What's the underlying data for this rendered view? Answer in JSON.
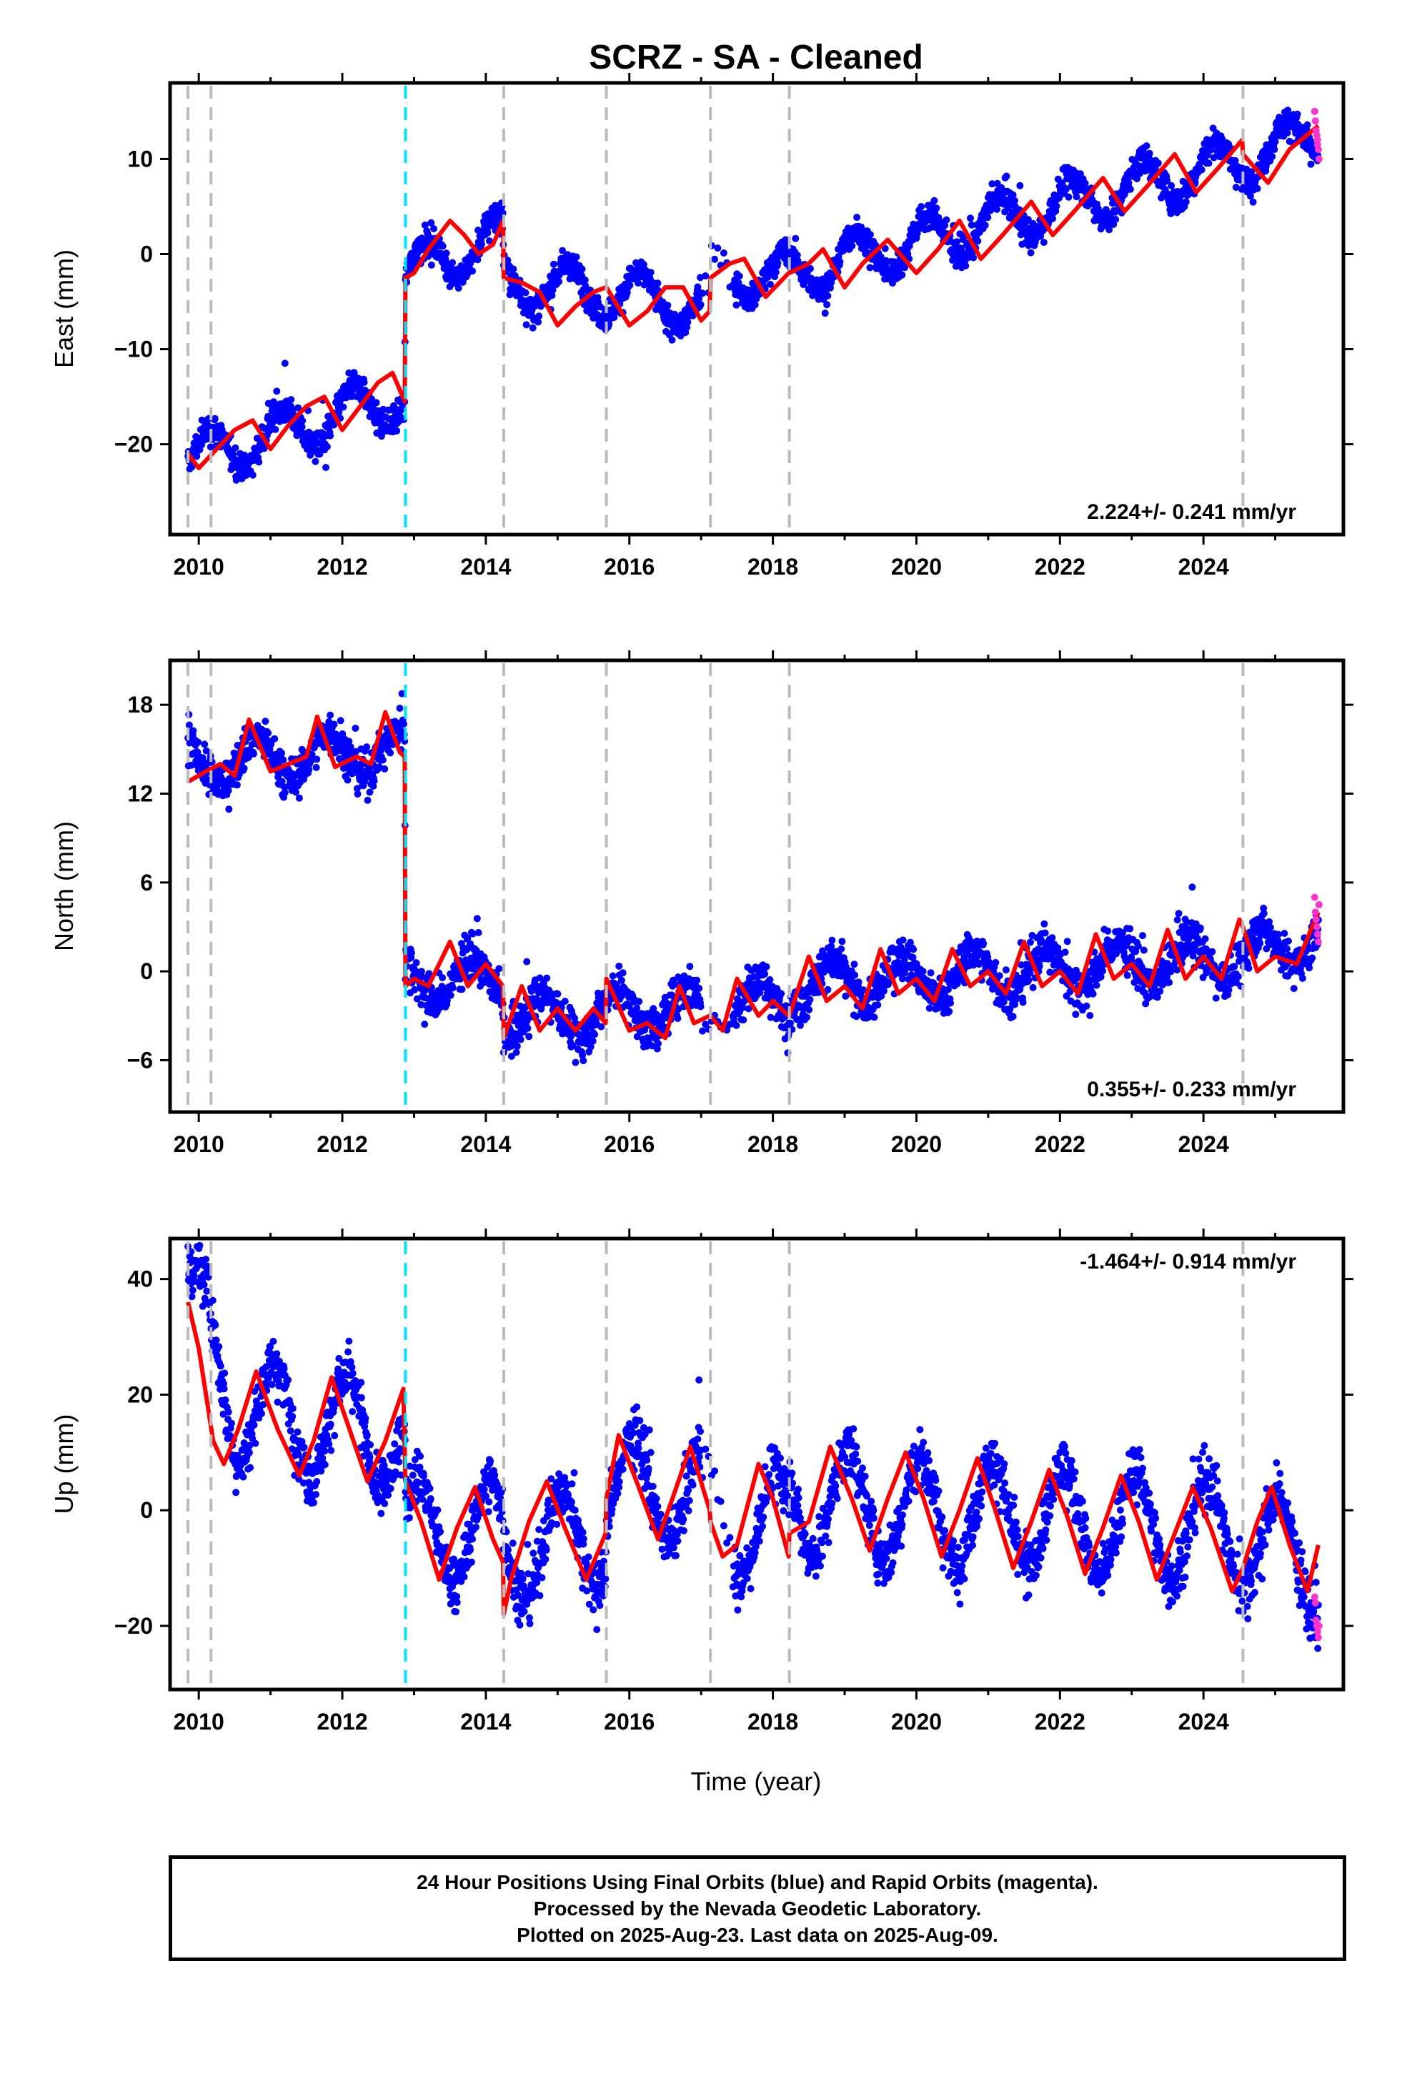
{
  "title": "SCRZ  - SA - Cleaned",
  "xlabel": "Time (year)",
  "caption": [
    "24 Hour Positions Using Final Orbits (blue) and Rapid Orbits (magenta).",
    "Processed by the Nevada Geodetic Laboratory.",
    "Plotted on 2025-Aug-23. Last data on 2025-Aug-09."
  ],
  "colors": {
    "final": "#0000ff",
    "rapid": "#ff33cc",
    "model": "#ff0000",
    "equipment_change": "#bbbbbb",
    "earthquake": "#00e5ff"
  },
  "chart_data": [
    {
      "type": "scatter",
      "ylabel": "East (mm)",
      "xlim": [
        2009.6,
        2025.95
      ],
      "ylim": [
        -29.5,
        18
      ],
      "xticks": [
        2010,
        2012,
        2014,
        2016,
        2018,
        2020,
        2022,
        2024
      ],
      "yticks": [
        -20,
        -10,
        0,
        10
      ],
      "rate": "2.224+/- 0.241 mm/yr",
      "rate_position": "bottom-right",
      "data_range": [
        2009.85,
        2025.6
      ],
      "gray_lines": [
        2009.85,
        2010.17,
        2014.25,
        2015.68,
        2017.13,
        2018.23,
        2024.55
      ],
      "cyan_lines": [
        2012.88
      ],
      "model": [
        [
          2009.85,
          -21
        ],
        [
          2010.0,
          -22.5
        ],
        [
          2010.25,
          -20.5
        ],
        [
          2010.5,
          -18.5
        ],
        [
          2010.75,
          -17.5
        ],
        [
          2011.0,
          -20.5
        ],
        [
          2011.25,
          -18
        ],
        [
          2011.5,
          -16
        ],
        [
          2011.75,
          -15
        ],
        [
          2012.0,
          -18.5
        ],
        [
          2012.25,
          -16
        ],
        [
          2012.5,
          -13.5
        ],
        [
          2012.7,
          -12.5
        ],
        [
          2012.87,
          -15.5
        ],
        [
          2012.88,
          -2.5
        ],
        [
          2013.0,
          -2
        ],
        [
          2013.2,
          0.5
        ],
        [
          2013.5,
          3.5
        ],
        [
          2013.7,
          2
        ],
        [
          2013.9,
          0
        ],
        [
          2014.1,
          1
        ],
        [
          2014.24,
          3.5
        ],
        [
          2014.25,
          -2.5
        ],
        [
          2014.5,
          -3
        ],
        [
          2014.75,
          -4
        ],
        [
          2015.0,
          -7.5
        ],
        [
          2015.25,
          -5.5
        ],
        [
          2015.5,
          -4
        ],
        [
          2015.67,
          -3.5
        ],
        [
          2015.68,
          -3.5
        ],
        [
          2016.0,
          -7.5
        ],
        [
          2016.25,
          -6
        ],
        [
          2016.5,
          -3.5
        ],
        [
          2016.75,
          -3.5
        ],
        [
          2017.0,
          -7
        ],
        [
          2017.12,
          -6
        ],
        [
          2017.13,
          -2.5
        ],
        [
          2017.4,
          -1
        ],
        [
          2017.6,
          -0.5
        ],
        [
          2017.9,
          -4.5
        ],
        [
          2018.22,
          -2
        ],
        [
          2018.23,
          -2
        ],
        [
          2018.5,
          -1
        ],
        [
          2018.7,
          0.5
        ],
        [
          2019.0,
          -3.5
        ],
        [
          2019.25,
          -1
        ],
        [
          2019.6,
          1.5
        ],
        [
          2020.0,
          -2
        ],
        [
          2020.3,
          0.5
        ],
        [
          2020.6,
          3.5
        ],
        [
          2020.9,
          -0.5
        ],
        [
          2021.2,
          2
        ],
        [
          2021.6,
          5.5
        ],
        [
          2021.9,
          2
        ],
        [
          2022.2,
          4.5
        ],
        [
          2022.6,
          8
        ],
        [
          2022.9,
          4.5
        ],
        [
          2023.2,
          7
        ],
        [
          2023.6,
          10.5
        ],
        [
          2023.9,
          6.5
        ],
        [
          2024.2,
          9
        ],
        [
          2024.54,
          12
        ],
        [
          2024.55,
          10.5
        ],
        [
          2024.9,
          7.5
        ],
        [
          2025.2,
          11
        ],
        [
          2025.6,
          13.5
        ]
      ],
      "anchors": [
        [
          2009.85,
          -21.5
        ],
        [
          2012.87,
          -15
        ],
        [
          2012.88,
          -2
        ],
        [
          2014.24,
          2
        ],
        [
          2014.25,
          -3
        ],
        [
          2015.67,
          -4
        ],
        [
          2015.68,
          -4
        ],
        [
          2017.12,
          -5.5
        ],
        [
          2017.13,
          -2
        ],
        [
          2018.22,
          -2.5
        ],
        [
          2018.23,
          -2
        ],
        [
          2024.54,
          10
        ],
        [
          2024.55,
          10
        ],
        [
          2025.6,
          12.5
        ]
      ],
      "season": {
        "amp": 2.5,
        "phase": 0.1,
        "sigma": 1.3
      },
      "rapid": [
        [
          2025.55,
          15
        ],
        [
          2025.56,
          14
        ],
        [
          2025.57,
          13
        ],
        [
          2025.58,
          12.5
        ],
        [
          2025.59,
          12
        ],
        [
          2025.6,
          11
        ],
        [
          2025.61,
          10
        ],
        [
          2025.59,
          11.5
        ]
      ]
    },
    {
      "type": "scatter",
      "ylabel": "North (mm)",
      "xlim": [
        2009.6,
        2025.95
      ],
      "ylim": [
        -9.5,
        21
      ],
      "xticks": [
        2010,
        2012,
        2014,
        2016,
        2018,
        2020,
        2022,
        2024
      ],
      "yticks": [
        -6,
        0,
        6,
        12,
        18
      ],
      "rate": "0.355+/- 0.233 mm/yr",
      "rate_position": "bottom-right",
      "data_range": [
        2009.85,
        2025.6
      ],
      "gray_lines": [
        2009.85,
        2010.17,
        2014.25,
        2015.68,
        2017.13,
        2018.23,
        2024.55
      ],
      "cyan_lines": [
        2012.88
      ],
      "model": [
        [
          2009.85,
          12.8
        ],
        [
          2010.1,
          13.5
        ],
        [
          2010.3,
          14
        ],
        [
          2010.5,
          13.2
        ],
        [
          2010.7,
          17
        ],
        [
          2011.0,
          13.5
        ],
        [
          2011.25,
          14
        ],
        [
          2011.5,
          14.5
        ],
        [
          2011.65,
          17.2
        ],
        [
          2011.9,
          13.8
        ],
        [
          2012.2,
          14.5
        ],
        [
          2012.4,
          14
        ],
        [
          2012.6,
          17.5
        ],
        [
          2012.8,
          14.8
        ],
        [
          2012.87,
          14.5
        ],
        [
          2012.88,
          -1
        ],
        [
          2013.0,
          -0.5
        ],
        [
          2013.2,
          -1
        ],
        [
          2013.5,
          2
        ],
        [
          2013.75,
          -1
        ],
        [
          2014.0,
          0.5
        ],
        [
          2014.24,
          -1
        ],
        [
          2014.25,
          -4.5
        ],
        [
          2014.5,
          -1
        ],
        [
          2014.75,
          -4
        ],
        [
          2015.0,
          -2.5
        ],
        [
          2015.25,
          -4
        ],
        [
          2015.5,
          -2.5
        ],
        [
          2015.67,
          -3.5
        ],
        [
          2015.68,
          -0.5
        ],
        [
          2016.0,
          -4
        ],
        [
          2016.25,
          -3.5
        ],
        [
          2016.5,
          -4.5
        ],
        [
          2016.7,
          -1
        ],
        [
          2016.9,
          -3.5
        ],
        [
          2017.12,
          -3
        ],
        [
          2017.13,
          -3
        ],
        [
          2017.3,
          -4
        ],
        [
          2017.5,
          -0.5
        ],
        [
          2017.8,
          -3
        ],
        [
          2018.0,
          -2
        ],
        [
          2018.22,
          -3
        ],
        [
          2018.23,
          -3
        ],
        [
          2018.5,
          1
        ],
        [
          2018.75,
          -2
        ],
        [
          2019.0,
          -1
        ],
        [
          2019.25,
          -2.5
        ],
        [
          2019.5,
          1.5
        ],
        [
          2019.75,
          -1.5
        ],
        [
          2020.0,
          -0.5
        ],
        [
          2020.25,
          -2
        ],
        [
          2020.5,
          1.5
        ],
        [
          2020.75,
          -1
        ],
        [
          2021.0,
          0
        ],
        [
          2021.25,
          -1.5
        ],
        [
          2021.5,
          2
        ],
        [
          2021.75,
          -1
        ],
        [
          2022.0,
          0
        ],
        [
          2022.25,
          -1.5
        ],
        [
          2022.5,
          2.5
        ],
        [
          2022.75,
          -0.5
        ],
        [
          2023.0,
          0.5
        ],
        [
          2023.25,
          -1
        ],
        [
          2023.5,
          2.8
        ],
        [
          2023.75,
          -0.5
        ],
        [
          2024.0,
          1
        ],
        [
          2024.25,
          -0.5
        ],
        [
          2024.5,
          3.5
        ],
        [
          2024.55,
          3
        ],
        [
          2024.75,
          0
        ],
        [
          2025.0,
          1
        ],
        [
          2025.3,
          0.5
        ],
        [
          2025.6,
          4
        ]
      ],
      "anchors": [
        [
          2009.85,
          14
        ],
        [
          2012.87,
          15
        ],
        [
          2012.88,
          -0.5
        ],
        [
          2014.24,
          -0.5
        ],
        [
          2014.25,
          -3
        ],
        [
          2015.67,
          -3
        ],
        [
          2015.68,
          -2.5
        ],
        [
          2017.12,
          -2.5
        ],
        [
          2017.13,
          -2
        ],
        [
          2018.22,
          -2
        ],
        [
          2018.23,
          -1
        ],
        [
          2024.54,
          1
        ],
        [
          2024.55,
          1
        ],
        [
          2025.6,
          2.5
        ]
      ],
      "season": {
        "amp": 1.5,
        "phase": 0.45,
        "sigma": 1.2
      },
      "rapid": [
        [
          2025.55,
          5
        ],
        [
          2025.56,
          4
        ],
        [
          2025.57,
          3.5
        ],
        [
          2025.58,
          3
        ],
        [
          2025.59,
          2.5
        ],
        [
          2025.6,
          2
        ],
        [
          2025.61,
          4.5
        ]
      ]
    },
    {
      "type": "scatter",
      "ylabel": "Up (mm)",
      "xlim": [
        2009.6,
        2025.95
      ],
      "ylim": [
        -31,
        47
      ],
      "xticks": [
        2010,
        2012,
        2014,
        2016,
        2018,
        2020,
        2022,
        2024
      ],
      "yticks": [
        -20,
        0,
        20,
        40
      ],
      "rate": "-1.464+/- 0.914 mm/yr",
      "rate_position": "top-right",
      "data_range": [
        2009.85,
        2025.6
      ],
      "gray_lines": [
        2009.85,
        2010.17,
        2014.25,
        2015.68,
        2017.13,
        2018.23,
        2024.55
      ],
      "cyan_lines": [
        2012.88
      ],
      "model": [
        [
          2009.85,
          36
        ],
        [
          2010.0,
          28
        ],
        [
          2010.2,
          12
        ],
        [
          2010.35,
          8
        ],
        [
          2010.55,
          14
        ],
        [
          2010.8,
          24
        ],
        [
          2011.1,
          14
        ],
        [
          2011.4,
          6
        ],
        [
          2011.6,
          12
        ],
        [
          2011.85,
          23
        ],
        [
          2012.1,
          14
        ],
        [
          2012.35,
          5
        ],
        [
          2012.6,
          12
        ],
        [
          2012.85,
          21
        ],
        [
          2012.88,
          5
        ],
        [
          2013.1,
          -2
        ],
        [
          2013.35,
          -12
        ],
        [
          2013.6,
          -3
        ],
        [
          2013.85,
          4
        ],
        [
          2014.1,
          -5
        ],
        [
          2014.24,
          -9
        ],
        [
          2014.25,
          -18
        ],
        [
          2014.35,
          -12
        ],
        [
          2014.6,
          -2
        ],
        [
          2014.85,
          5
        ],
        [
          2015.1,
          -3
        ],
        [
          2015.4,
          -12
        ],
        [
          2015.67,
          -4
        ],
        [
          2015.68,
          2
        ],
        [
          2015.85,
          13
        ],
        [
          2016.1,
          5
        ],
        [
          2016.4,
          -5
        ],
        [
          2016.6,
          2
        ],
        [
          2016.85,
          11
        ],
        [
          2017.12,
          0
        ],
        [
          2017.13,
          -2
        ],
        [
          2017.3,
          -8
        ],
        [
          2017.5,
          -6
        ],
        [
          2017.8,
          8
        ],
        [
          2018.0,
          2
        ],
        [
          2018.22,
          -8
        ],
        [
          2018.23,
          -4
        ],
        [
          2018.5,
          -2
        ],
        [
          2018.8,
          11
        ],
        [
          2019.1,
          2
        ],
        [
          2019.35,
          -7
        ],
        [
          2019.6,
          2
        ],
        [
          2019.85,
          10
        ],
        [
          2020.1,
          2
        ],
        [
          2020.35,
          -8
        ],
        [
          2020.6,
          0
        ],
        [
          2020.85,
          9
        ],
        [
          2021.1,
          0
        ],
        [
          2021.35,
          -10
        ],
        [
          2021.6,
          -2
        ],
        [
          2021.85,
          7
        ],
        [
          2022.1,
          -1
        ],
        [
          2022.35,
          -11
        ],
        [
          2022.6,
          -3
        ],
        [
          2022.85,
          6
        ],
        [
          2023.1,
          -2
        ],
        [
          2023.35,
          -12
        ],
        [
          2023.6,
          -4
        ],
        [
          2023.85,
          4
        ],
        [
          2024.1,
          -3
        ],
        [
          2024.4,
          -14
        ],
        [
          2024.55,
          -10
        ],
        [
          2024.75,
          -2
        ],
        [
          2024.95,
          4
        ],
        [
          2025.2,
          -6
        ],
        [
          2025.45,
          -14
        ],
        [
          2025.6,
          -6
        ]
      ],
      "anchors": [
        [
          2009.85,
          38
        ],
        [
          2010.5,
          18
        ],
        [
          2011.5,
          15
        ],
        [
          2012.5,
          13
        ],
        [
          2012.87,
          12
        ],
        [
          2012.88,
          -3
        ],
        [
          2014.24,
          -4
        ],
        [
          2014.25,
          -7
        ],
        [
          2015.67,
          -4
        ],
        [
          2015.68,
          4
        ],
        [
          2017.12,
          3
        ],
        [
          2017.13,
          -3
        ],
        [
          2018.22,
          -2
        ],
        [
          2018.23,
          2
        ],
        [
          2024.54,
          -4
        ],
        [
          2024.55,
          -4
        ],
        [
          2025.6,
          -10
        ]
      ],
      "season": {
        "amp": 9,
        "phase": 0.2,
        "sigma": 4
      },
      "rapid": [
        [
          2025.55,
          -15
        ],
        [
          2025.56,
          -16
        ],
        [
          2025.57,
          -19
        ],
        [
          2025.58,
          -20
        ],
        [
          2025.59,
          -21
        ],
        [
          2025.6,
          -22
        ],
        [
          2025.61,
          -20
        ]
      ]
    }
  ]
}
